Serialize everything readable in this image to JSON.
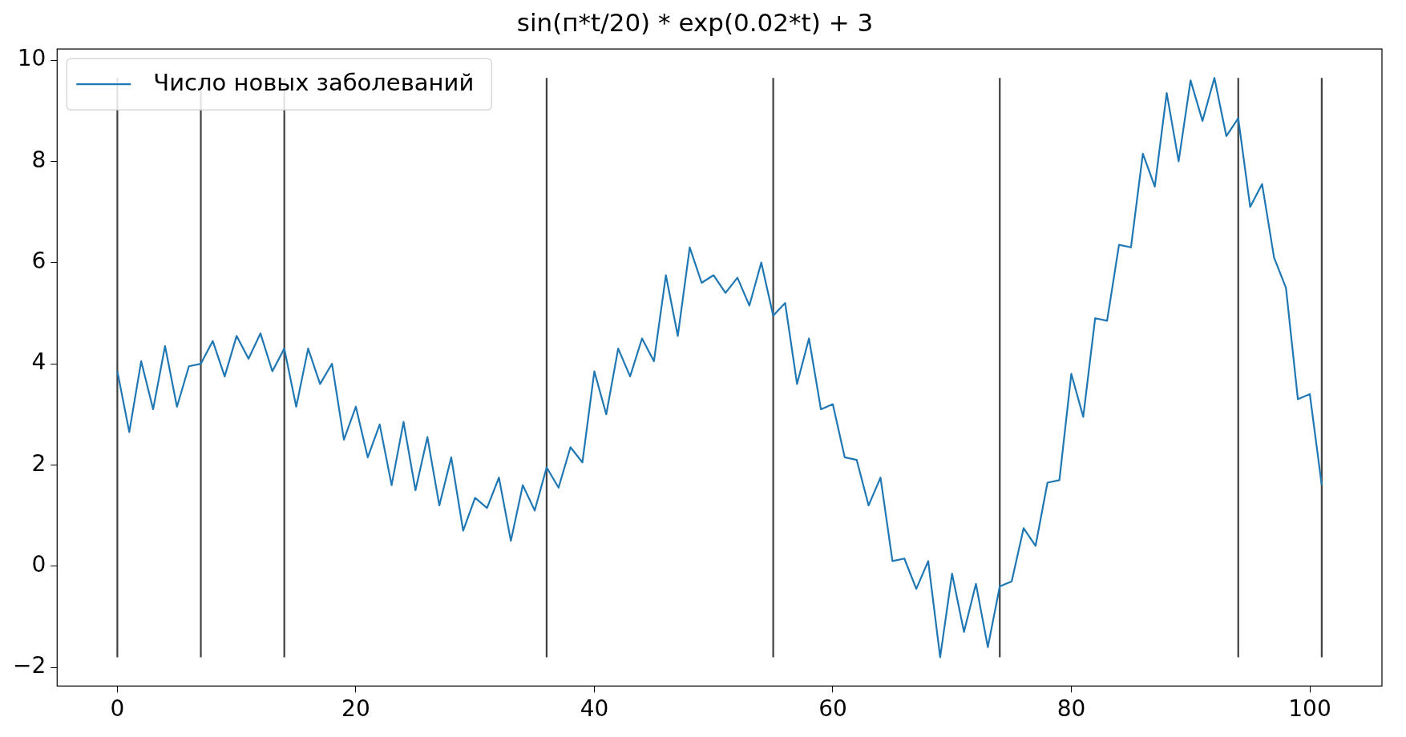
{
  "chart_data": {
    "type": "line",
    "title": "sin(п*t/20) * exp(0.02*t) + 3",
    "x": [
      0,
      1,
      2,
      3,
      4,
      5,
      6,
      7,
      8,
      9,
      10,
      11,
      12,
      13,
      14,
      15,
      16,
      17,
      18,
      19,
      20,
      21,
      22,
      23,
      24,
      25,
      26,
      27,
      28,
      29,
      30,
      31,
      32,
      33,
      34,
      35,
      36,
      37,
      38,
      39,
      40,
      41,
      42,
      43,
      44,
      45,
      46,
      47,
      48,
      49,
      50,
      51,
      52,
      53,
      54,
      55,
      56,
      57,
      58,
      59,
      60,
      61,
      62,
      63,
      64,
      65,
      66,
      67,
      68,
      69,
      70,
      71,
      72,
      73,
      74,
      75,
      76,
      77,
      78,
      79,
      80,
      81,
      82,
      83,
      84,
      85,
      86,
      87,
      88,
      89,
      90,
      91,
      92,
      93,
      94,
      95,
      96,
      97,
      98,
      99,
      100,
      101
    ],
    "series": [
      {
        "name": "Число новых заболеваний",
        "color": "#1f77b4",
        "values": [
          3.85,
          2.65,
          4.05,
          3.1,
          4.35,
          3.15,
          3.95,
          4.0,
          4.45,
          3.75,
          4.55,
          4.1,
          4.6,
          3.85,
          4.3,
          3.15,
          4.3,
          3.6,
          4.0,
          2.5,
          3.15,
          2.15,
          2.8,
          1.6,
          2.85,
          1.5,
          2.55,
          1.2,
          2.15,
          0.7,
          1.35,
          1.15,
          1.75,
          0.5,
          1.6,
          1.1,
          1.95,
          1.55,
          2.35,
          2.05,
          3.85,
          3.0,
          4.3,
          3.75,
          4.5,
          4.05,
          5.75,
          4.55,
          6.3,
          5.6,
          5.75,
          5.4,
          5.7,
          5.15,
          6.0,
          4.95,
          5.2,
          3.6,
          4.5,
          3.1,
          3.2,
          2.15,
          2.1,
          1.2,
          1.75,
          0.1,
          0.15,
          -0.45,
          0.1,
          -1.8,
          -0.15,
          -1.3,
          -0.35,
          -1.6,
          -0.4,
          -0.3,
          0.75,
          0.4,
          1.65,
          1.7,
          3.8,
          2.95,
          4.9,
          4.85,
          6.35,
          6.3,
          8.15,
          7.5,
          9.35,
          8.0,
          9.6,
          8.8,
          9.65,
          8.5,
          8.85,
          7.1,
          7.55,
          6.1,
          5.5,
          3.3,
          3.4,
          1.6
        ]
      }
    ],
    "ref_lines": [
      {
        "axis": "x",
        "value": 0,
        "color": "#404040"
      },
      {
        "axis": "x",
        "value": 7,
        "color": "#404040"
      },
      {
        "axis": "x",
        "value": 14,
        "color": "#404040"
      },
      {
        "axis": "x",
        "value": 36,
        "color": "#404040"
      },
      {
        "axis": "x",
        "value": 55,
        "color": "#404040"
      },
      {
        "axis": "x",
        "value": 74,
        "color": "#404040"
      },
      {
        "axis": "x",
        "value": 94,
        "color": "#404040"
      },
      {
        "axis": "x",
        "value": 101,
        "color": "#404040"
      }
    ],
    "xlim": [
      -5.05,
      106.05
    ],
    "xticks": [
      0,
      20,
      40,
      60,
      80,
      100
    ],
    "ylim": [
      -2.37,
      10.22
    ],
    "yticks": [
      -2,
      0,
      2,
      4,
      6,
      8,
      10
    ],
    "grid": false,
    "legend": "top left",
    "marker": "none",
    "line_style": "solid"
  }
}
